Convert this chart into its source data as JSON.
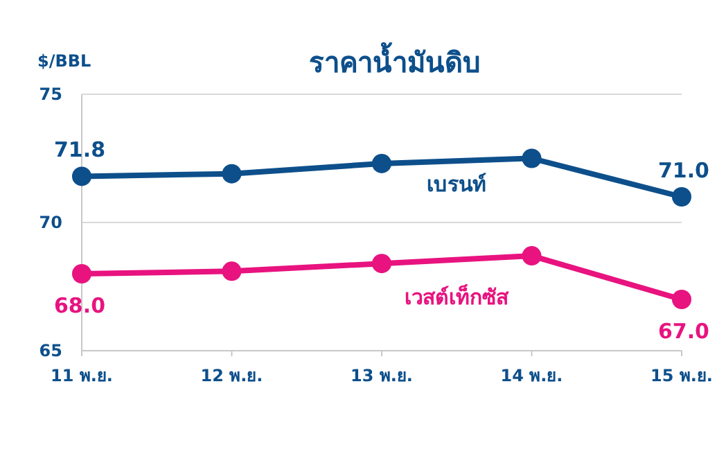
{
  "chart_data": {
    "type": "line",
    "title": "ราคาน้ำมันดิบ",
    "ylabel": "$/BBL",
    "categories": [
      "11 พ.ย.",
      "12 พ.ย.",
      "13 พ.ย.",
      "14 พ.ย.",
      "15 พ.ย."
    ],
    "series": [
      {
        "name": "เบรนท์",
        "color": "#0d4f8b",
        "values": [
          71.8,
          71.9,
          72.3,
          72.5,
          71.0
        ],
        "value_labels": [
          "71.8",
          null,
          null,
          null,
          "71.0"
        ]
      },
      {
        "name": "เวสต์เท็กซัส",
        "color": "#e8137f",
        "values": [
          68.0,
          68.1,
          68.4,
          68.7,
          67.0
        ],
        "value_labels": [
          "68.0",
          null,
          null,
          null,
          "67.0"
        ]
      }
    ],
    "ylim": [
      65,
      75
    ],
    "yticks": [
      65,
      70,
      75
    ],
    "grid": "y",
    "marker": "circle",
    "line_style": "solid"
  }
}
